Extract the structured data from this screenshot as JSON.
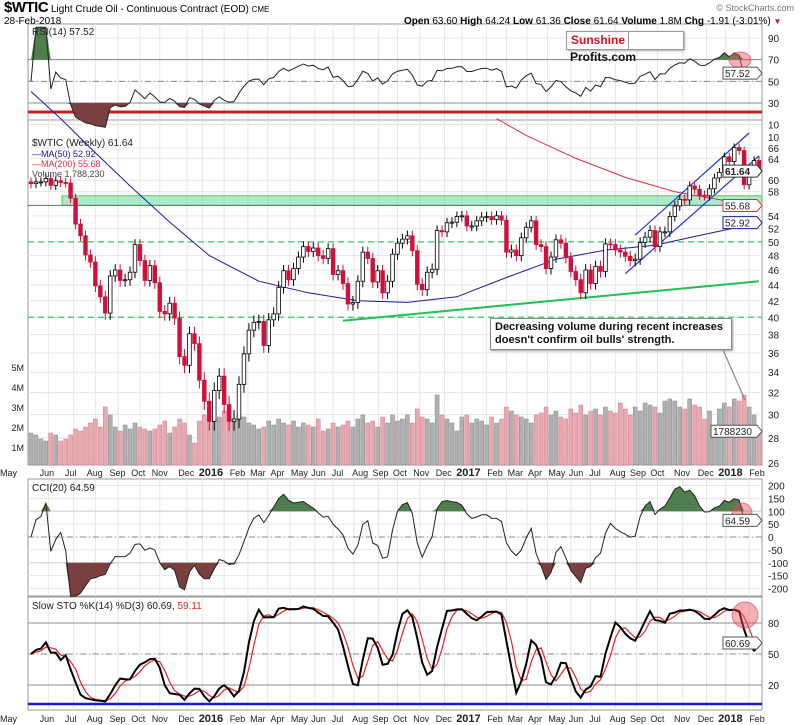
{
  "header": {
    "symbol": "$WTIC",
    "name": "Light Crude Oil - Continuous Contract (EOD)",
    "exchange": "CME",
    "date": "28-Feb-2018",
    "copyright": "© StockCharts.com",
    "open_label": "Open",
    "open": "63.60",
    "high_label": "High",
    "high": "64.24",
    "low_label": "Low",
    "low": "61.36",
    "close_label": "Close",
    "close": "61.64",
    "volume_label": "Volume",
    "volume": "1.8M",
    "chg_label": "Chg",
    "chg": "-1.91 (-3.01%)",
    "chg_arrow": "▼"
  },
  "logo": {
    "part1": "Sunshine",
    "part2": "Profits.com"
  },
  "colors": {
    "up": "#000000",
    "down": "#d0103a",
    "ma50": "#1a1aa0",
    "ma200": "#e03040",
    "support": "#22c055",
    "channel": "#2233dd",
    "vol_up": "#b0b0b0",
    "vol_down": "#e8a8b0",
    "cci_pos": "#4f7f4f",
    "cci_neg": "#7a4040",
    "sto_d": "#ee2222"
  },
  "annotation": {
    "line1": "Decreasing volume during recent increases",
    "line2": "doesn't confirm oil bulls' strength."
  },
  "chart_data": [
    {
      "type": "line",
      "title": "RSI(14) 57.52",
      "panel": "rsi",
      "yticks": [
        "90",
        "70",
        "50",
        "30",
        "10"
      ],
      "last_label": "57.52",
      "levels": [
        70,
        30
      ]
    },
    {
      "type": "candlestick",
      "panel": "price",
      "title": "$WTIC (Weekly) 61.64",
      "legend": [
        "MA(50) 52.92",
        "MA(200) 55.68",
        "Volume 1,788,230"
      ],
      "scale": "log",
      "ylim": [
        26,
        66
      ],
      "yticks": [
        "66",
        "64",
        "60",
        "58",
        "54",
        "52",
        "50",
        "48",
        "46",
        "44",
        "42",
        "40",
        "38",
        "36",
        "34",
        "32",
        "30",
        "28",
        "26"
      ],
      "top_tick": "10",
      "price_tags": {
        "close": "61.64",
        "ma200": "55.68",
        "ma50": "52.92",
        "volume": "1788230"
      },
      "volume_ticks": [
        "5M",
        "4M",
        "3M",
        "2M",
        "1M"
      ],
      "x_labels": [
        {
          "t": "May",
          "b": false,
          "w": -4.5
        },
        {
          "t": "Jun",
          "b": false,
          "w": 3.5
        },
        {
          "t": "Jul",
          "b": false,
          "w": 8.6
        },
        {
          "t": "Aug",
          "b": false,
          "w": 13
        },
        {
          "t": "Sep",
          "b": false,
          "w": 17.6
        },
        {
          "t": "Oct",
          "b": false,
          "w": 22
        },
        {
          "t": "Nov",
          "b": false,
          "w": 26
        },
        {
          "t": "Dec",
          "b": false,
          "w": 31.5
        },
        {
          "t": "2016",
          "b": true,
          "w": 34.6
        },
        {
          "t": "Feb",
          "b": false,
          "w": 39
        },
        {
          "t": "Mar",
          "b": false,
          "w": 43.8
        },
        {
          "t": "Apr",
          "b": false,
          "w": 47.8
        },
        {
          "t": "May",
          "b": false,
          "w": 52.3
        },
        {
          "t": "Jun",
          "b": false,
          "w": 57.3
        },
        {
          "t": "Jul",
          "b": false,
          "w": 61
        },
        {
          "t": "Aug",
          "b": false,
          "w": 65.2
        },
        {
          "t": "Sep",
          "b": false,
          "w": 70.2
        },
        {
          "t": "Oct",
          "b": false,
          "w": 74
        },
        {
          "t": "Nov",
          "b": false,
          "w": 78.5
        },
        {
          "t": "Dec",
          "b": false,
          "w": 83.5
        },
        {
          "t": "2017",
          "b": true,
          "w": 87
        },
        {
          "t": "Feb",
          "b": false,
          "w": 92
        },
        {
          "t": "Mar",
          "b": false,
          "w": 96
        },
        {
          "t": "Apr",
          "b": false,
          "w": 100.2
        },
        {
          "t": "May",
          "b": false,
          "w": 104.3
        },
        {
          "t": "Jun",
          "b": false,
          "w": 109
        },
        {
          "t": "Jul",
          "b": false,
          "w": 113
        },
        {
          "t": "Aug",
          "b": false,
          "w": 118
        },
        {
          "t": "Sep",
          "b": false,
          "w": 122.3
        },
        {
          "t": "Oct",
          "b": false,
          "w": 126.5
        },
        {
          "t": "Nov",
          "b": false,
          "w": 131.6
        },
        {
          "t": "Dec",
          "b": false,
          "w": 136.4
        },
        {
          "t": "2018",
          "b": true,
          "w": 140.2
        },
        {
          "t": "Feb",
          "b": false,
          "w": 145
        }
      ],
      "closes": [
        59.4,
        59.7,
        59.7,
        60.3,
        59.1,
        59.9,
        59.6,
        59.5,
        56.9,
        52.7,
        50.9,
        48.1,
        47.1,
        43.9,
        42.5,
        40.5,
        45.2,
        46.0,
        44.6,
        44.7,
        45.7,
        49.6,
        47.3,
        44.6,
        46.6,
        44.3,
        40.7,
        40.4,
        41.7,
        39.9,
        35.6,
        34.7,
        38.1,
        37.0,
        33.2,
        31.2,
        29.4,
        32.2,
        33.6,
        30.9,
        29.4,
        29.6,
        32.8,
        35.9,
        38.5,
        39.4,
        39.5,
        36.8,
        39.7,
        40.4,
        43.7,
        45.9,
        44.7,
        46.2,
        47.8,
        49.3,
        48.6,
        49.1,
        48.0,
        47.6,
        49.0,
        45.4,
        45.9,
        44.2,
        41.6,
        41.8,
        44.5,
        48.5,
        47.6,
        44.4,
        45.9,
        43.0,
        44.5,
        48.2,
        49.8,
        50.4,
        50.9,
        48.7,
        44.1,
        43.4,
        45.7,
        46.1,
        51.7,
        51.5,
        52.9,
        53.0,
        53.9,
        54.0,
        52.4,
        52.4,
        53.2,
        53.8,
        53.9,
        53.4,
        54.0,
        53.3,
        48.5,
        48.8,
        48.0,
        50.6,
        52.2,
        53.2,
        49.6,
        49.3,
        46.2,
        47.8,
        50.3,
        49.8,
        47.7,
        45.8,
        44.7,
        43.0,
        46.0,
        44.2,
        46.5,
        45.8,
        49.7,
        49.6,
        48.8,
        48.5,
        47.9,
        47.3,
        47.5,
        49.9,
        50.7,
        51.7,
        49.3,
        51.5,
        51.5,
        53.9,
        55.6,
        56.7,
        56.6,
        59.0,
        58.4,
        57.4,
        57.3,
        58.5,
        60.4,
        61.4,
        64.3,
        63.4,
        66.1,
        65.5,
        59.2,
        61.7,
        63.6,
        61.64
      ],
      "volumes_m": [
        1.7,
        1.6,
        1.4,
        1.3,
        1.7,
        1.6,
        1.3,
        1.4,
        1.6,
        1.9,
        1.8,
        2.0,
        2.2,
        2.4,
        2.0,
        3.0,
        2.6,
        2.0,
        1.8,
        2.1,
        1.9,
        2.2,
        2.0,
        1.9,
        1.8,
        1.9,
        2.1,
        2.3,
        1.7,
        2.0,
        2.4,
        2.2,
        1.6,
        1.2,
        2.3,
        2.6,
        3.0,
        2.4,
        2.5,
        2.8,
        3.0,
        2.4,
        2.6,
        2.5,
        2.2,
        2.1,
        1.9,
        2.0,
        2.3,
        2.1,
        2.4,
        2.2,
        2.1,
        2.3,
        2.0,
        2.2,
        2.1,
        2.0,
        2.4,
        1.8,
        1.9,
        2.2,
        2.0,
        2.1,
        2.3,
        2.0,
        2.4,
        2.6,
        2.2,
        2.3,
        2.0,
        2.5,
        2.2,
        2.6,
        2.3,
        2.4,
        2.6,
        2.2,
        2.9,
        2.5,
        2.4,
        2.2,
        3.6,
        2.6,
        2.4,
        2.2,
        1.8,
        2.5,
        2.6,
        2.2,
        2.4,
        2.3,
        2.1,
        2.5,
        2.2,
        2.4,
        3.0,
        2.8,
        2.6,
        2.5,
        2.4,
        2.2,
        2.6,
        2.7,
        3.0,
        2.6,
        2.8,
        2.5,
        2.4,
        2.9,
        2.7,
        3.1,
        2.6,
        2.8,
        2.9,
        2.6,
        3.0,
        2.8,
        2.7,
        3.2,
        2.9,
        2.6,
        3.0,
        2.8,
        3.2,
        3.1,
        3.0,
        2.7,
        3.3,
        3.4,
        3.3,
        3.0,
        2.9,
        3.4,
        3.1,
        3.0,
        2.4,
        2.8,
        2.0,
        2.9,
        3.2,
        3.0,
        3.4,
        3.3,
        3.6,
        3.0,
        2.6,
        1.79
      ],
      "ma50_points": [
        [
          0,
          78
        ],
        [
          6,
          72
        ],
        [
          12,
          66
        ],
        [
          20,
          59
        ],
        [
          28,
          53
        ],
        [
          36,
          48
        ],
        [
          46,
          44.5
        ],
        [
          56,
          43
        ],
        [
          66,
          42
        ],
        [
          76,
          41.8
        ],
        [
          86,
          42.5
        ],
        [
          96,
          45
        ],
        [
          106,
          47.5
        ],
        [
          116,
          48.8
        ],
        [
          126,
          49.5
        ],
        [
          134,
          50.8
        ],
        [
          147,
          52.92
        ]
      ],
      "ma200_points": [
        [
          94,
          72
        ],
        [
          100,
          68.5
        ],
        [
          110,
          64
        ],
        [
          120,
          60.5
        ],
        [
          130,
          58
        ],
        [
          140,
          56.5
        ],
        [
          147,
          55.68
        ]
      ],
      "horizontal_band": [
        55.7,
        57.3
      ],
      "dashed_levels": [
        50,
        40
      ],
      "support_line": [
        [
          63,
          39.6
        ],
        [
          147,
          44.5
        ]
      ],
      "channel_lower": [
        [
          120,
          45.5
        ],
        [
          147,
          64.5
        ]
      ],
      "channel_upper": [
        [
          122,
          51
        ],
        [
          145,
          69
        ]
      ]
    },
    {
      "type": "line",
      "panel": "cci",
      "title": "CCI(20) 64.59",
      "yticks": [
        "200",
        "150",
        "100",
        "50",
        "0",
        "-50",
        "-100",
        "-150",
        "-200"
      ],
      "last_label": "64.59"
    },
    {
      "type": "line",
      "panel": "sto",
      "title_prefix": "Slow STO %K(14) %D(3)",
      "k_value": "60.69",
      "d_value": "59.11",
      "yticks": [
        "80",
        "50",
        "20"
      ],
      "last_label": "60.69"
    }
  ]
}
